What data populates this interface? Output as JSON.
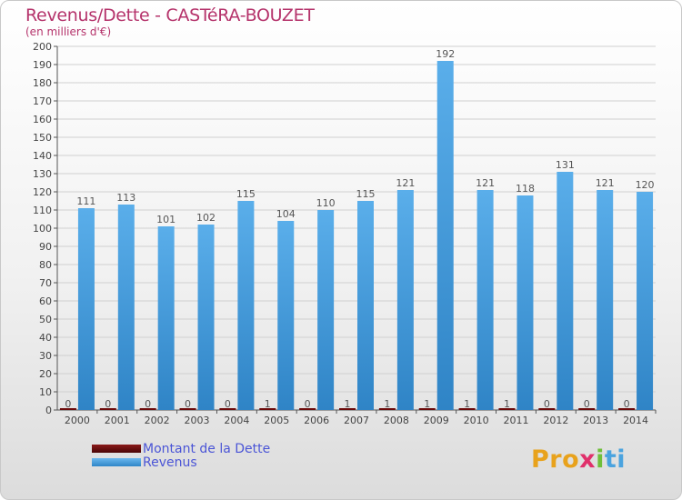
{
  "chart_data": {
    "type": "bar",
    "title": "Revenus/Dette - CASTéRA-BOUZET",
    "subtitle": "(en milliers d'€)",
    "categories": [
      "2000",
      "2001",
      "2002",
      "2003",
      "2004",
      "2005",
      "2006",
      "2007",
      "2008",
      "2009",
      "2010",
      "2011",
      "2012",
      "2013",
      "2014"
    ],
    "series": [
      {
        "name": "Montant de la Dette",
        "color": "#6b0a0a",
        "values": [
          0,
          0,
          0,
          0,
          0,
          1,
          0,
          1,
          1,
          1,
          1,
          1,
          0,
          0,
          0
        ]
      },
      {
        "name": "Revenus",
        "color": "#4fa6e3",
        "values": [
          111,
          113,
          101,
          102,
          115,
          104,
          110,
          115,
          121,
          192,
          121,
          118,
          131,
          121,
          120
        ]
      }
    ],
    "ylim": [
      0,
      200
    ],
    "ytick_step": 10,
    "grid": true,
    "xlabel": "",
    "ylabel": ""
  },
  "logo": {
    "p1": "Pro",
    "p2": "x",
    "p3": "i",
    "p4": "ti"
  }
}
